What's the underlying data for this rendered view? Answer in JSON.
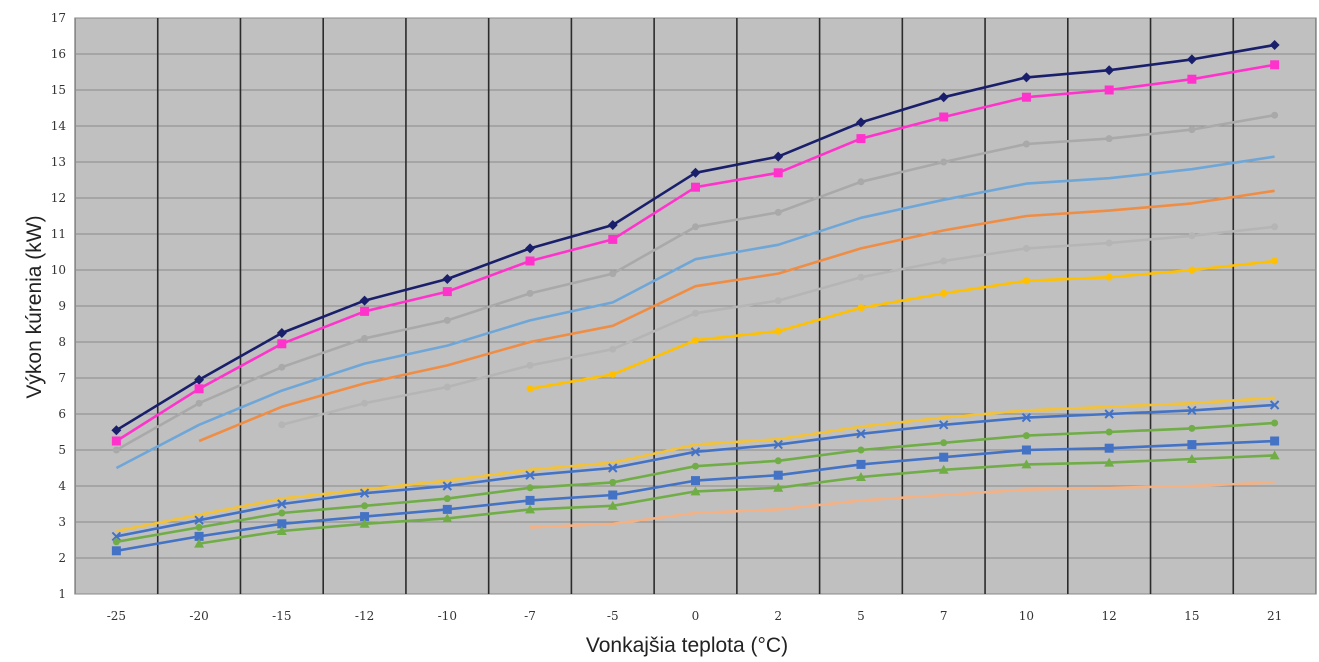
{
  "chart_data": {
    "type": "line",
    "title": "",
    "xlabel": "Vonkajšia teplota (°C)",
    "ylabel": "Výkon kúrenia (kW)",
    "ylim": [
      1,
      17
    ],
    "yticks": [
      1,
      2,
      3,
      4,
      5,
      6,
      7,
      8,
      9,
      10,
      11,
      12,
      13,
      14,
      15,
      16,
      17
    ],
    "categories": [
      "-25",
      "-20",
      "-15",
      "-12",
      "-10",
      "-7",
      "-5",
      "0",
      "2",
      "5",
      "7",
      "10",
      "12",
      "15",
      "21"
    ],
    "grid": true,
    "legend": "none",
    "plot_background": "#c0c0c0",
    "series": [
      {
        "color": "#1a1f6b",
        "marker": "diamond",
        "values": [
          5.55,
          6.95,
          8.25,
          9.15,
          9.75,
          10.6,
          11.25,
          12.7,
          13.15,
          14.1,
          14.8,
          15.35,
          15.55,
          15.85,
          16.25
        ]
      },
      {
        "color": "#ff33cc",
        "marker": "square",
        "values": [
          5.25,
          6.7,
          7.95,
          8.85,
          9.4,
          10.25,
          10.85,
          12.3,
          12.7,
          13.65,
          14.25,
          14.8,
          15.0,
          15.3,
          15.7
        ]
      },
      {
        "color": "#a9a9a9",
        "marker": "circle",
        "values": [
          5.0,
          6.3,
          7.3,
          8.1,
          8.6,
          9.35,
          9.9,
          11.2,
          11.6,
          12.45,
          13.0,
          13.5,
          13.65,
          13.9,
          14.3
        ]
      },
      {
        "color": "#6fa6d8",
        "marker": "none",
        "values": [
          4.5,
          5.7,
          6.65,
          7.4,
          7.9,
          8.6,
          9.1,
          10.3,
          10.7,
          11.45,
          11.95,
          12.4,
          12.55,
          12.8,
          13.15
        ]
      },
      {
        "color": "#ef8d45",
        "marker": "none",
        "values": [
          null,
          5.25,
          6.2,
          6.85,
          7.35,
          8.0,
          8.45,
          9.55,
          9.9,
          10.6,
          11.1,
          11.5,
          11.65,
          11.85,
          12.2
        ]
      },
      {
        "color": "#b5b5b5",
        "marker": "circle",
        "values": [
          null,
          null,
          5.7,
          6.3,
          6.75,
          7.35,
          7.8,
          8.8,
          9.15,
          9.8,
          10.25,
          10.6,
          10.75,
          10.95,
          11.2
        ]
      },
      {
        "color": "#ffc000",
        "marker": "circle",
        "values": [
          null,
          null,
          null,
          null,
          null,
          6.7,
          7.1,
          8.05,
          8.3,
          8.95,
          9.35,
          9.7,
          9.8,
          10.0,
          10.25
        ]
      },
      {
        "color": "#f3c236",
        "marker": "none",
        "values": [
          2.75,
          3.2,
          3.65,
          3.9,
          4.15,
          4.45,
          4.65,
          5.15,
          5.3,
          5.65,
          5.9,
          6.1,
          6.2,
          6.3,
          6.45
        ]
      },
      {
        "color": "#4472c4",
        "marker": "cross",
        "values": [
          2.6,
          3.05,
          3.5,
          3.8,
          4.0,
          4.3,
          4.5,
          4.95,
          5.15,
          5.45,
          5.7,
          5.9,
          6.0,
          6.1,
          6.25
        ]
      },
      {
        "color": "#70ad47",
        "marker": "circle",
        "values": [
          2.45,
          2.85,
          3.25,
          3.45,
          3.65,
          3.95,
          4.1,
          4.55,
          4.7,
          5.0,
          5.2,
          5.4,
          5.5,
          5.6,
          5.75
        ]
      },
      {
        "color": "#4472c4",
        "marker": "square",
        "values": [
          2.2,
          2.6,
          2.95,
          3.15,
          3.35,
          3.6,
          3.75,
          4.15,
          4.3,
          4.6,
          4.8,
          5.0,
          5.05,
          5.15,
          5.25
        ]
      },
      {
        "color": "#70ad47",
        "marker": "triangle",
        "values": [
          null,
          2.4,
          2.75,
          2.95,
          3.1,
          3.35,
          3.45,
          3.85,
          3.95,
          4.25,
          4.45,
          4.6,
          4.65,
          4.75,
          4.85
        ]
      },
      {
        "color": "#f4b183",
        "marker": "none",
        "values": [
          null,
          null,
          null,
          null,
          null,
          2.85,
          2.95,
          3.25,
          3.35,
          3.6,
          3.75,
          3.9,
          3.95,
          4.0,
          4.1
        ]
      }
    ]
  }
}
